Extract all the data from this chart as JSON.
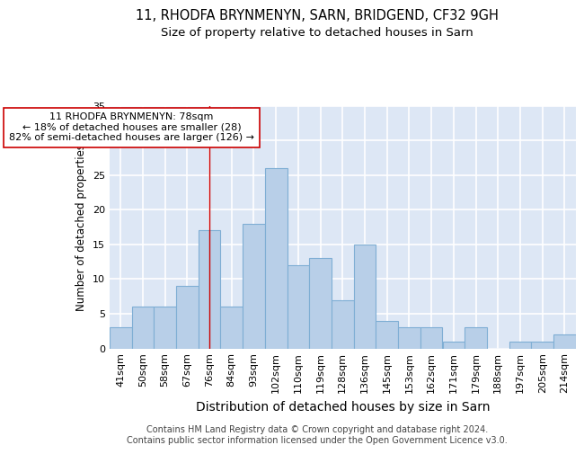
{
  "title_line1": "11, RHODFA BRYNMENYN, SARN, BRIDGEND, CF32 9GH",
  "title_line2": "Size of property relative to detached houses in Sarn",
  "xlabel": "Distribution of detached houses by size in Sarn",
  "ylabel": "Number of detached properties",
  "categories": [
    "41sqm",
    "50sqm",
    "58sqm",
    "67sqm",
    "76sqm",
    "84sqm",
    "93sqm",
    "102sqm",
    "110sqm",
    "119sqm",
    "128sqm",
    "136sqm",
    "145sqm",
    "153sqm",
    "162sqm",
    "171sqm",
    "179sqm",
    "188sqm",
    "197sqm",
    "205sqm",
    "214sqm"
  ],
  "values": [
    3,
    6,
    6,
    9,
    17,
    6,
    18,
    26,
    12,
    13,
    7,
    15,
    4,
    3,
    3,
    1,
    3,
    0,
    1,
    1,
    2
  ],
  "bar_color": "#b8cfe8",
  "bar_edge_color": "#7faed4",
  "background_color": "#dde7f5",
  "grid_color": "#ffffff",
  "vline_x_index": 4,
  "vline_color": "#cc0000",
  "annotation_text": "11 RHODFA BRYNMENYN: 78sqm\n← 18% of detached houses are smaller (28)\n82% of semi-detached houses are larger (126) →",
  "annotation_box_color": "#ffffff",
  "annotation_box_edge": "#cc0000",
  "footer_line1": "Contains HM Land Registry data © Crown copyright and database right 2024.",
  "footer_line2": "Contains public sector information licensed under the Open Government Licence v3.0.",
  "ylim": [
    0,
    35
  ],
  "yticks": [
    0,
    5,
    10,
    15,
    20,
    25,
    30,
    35
  ],
  "title_fontsize": 10.5,
  "subtitle_fontsize": 9.5,
  "xlabel_fontsize": 10,
  "ylabel_fontsize": 8.5,
  "tick_fontsize": 8,
  "annotation_fontsize": 8,
  "footer_fontsize": 7
}
